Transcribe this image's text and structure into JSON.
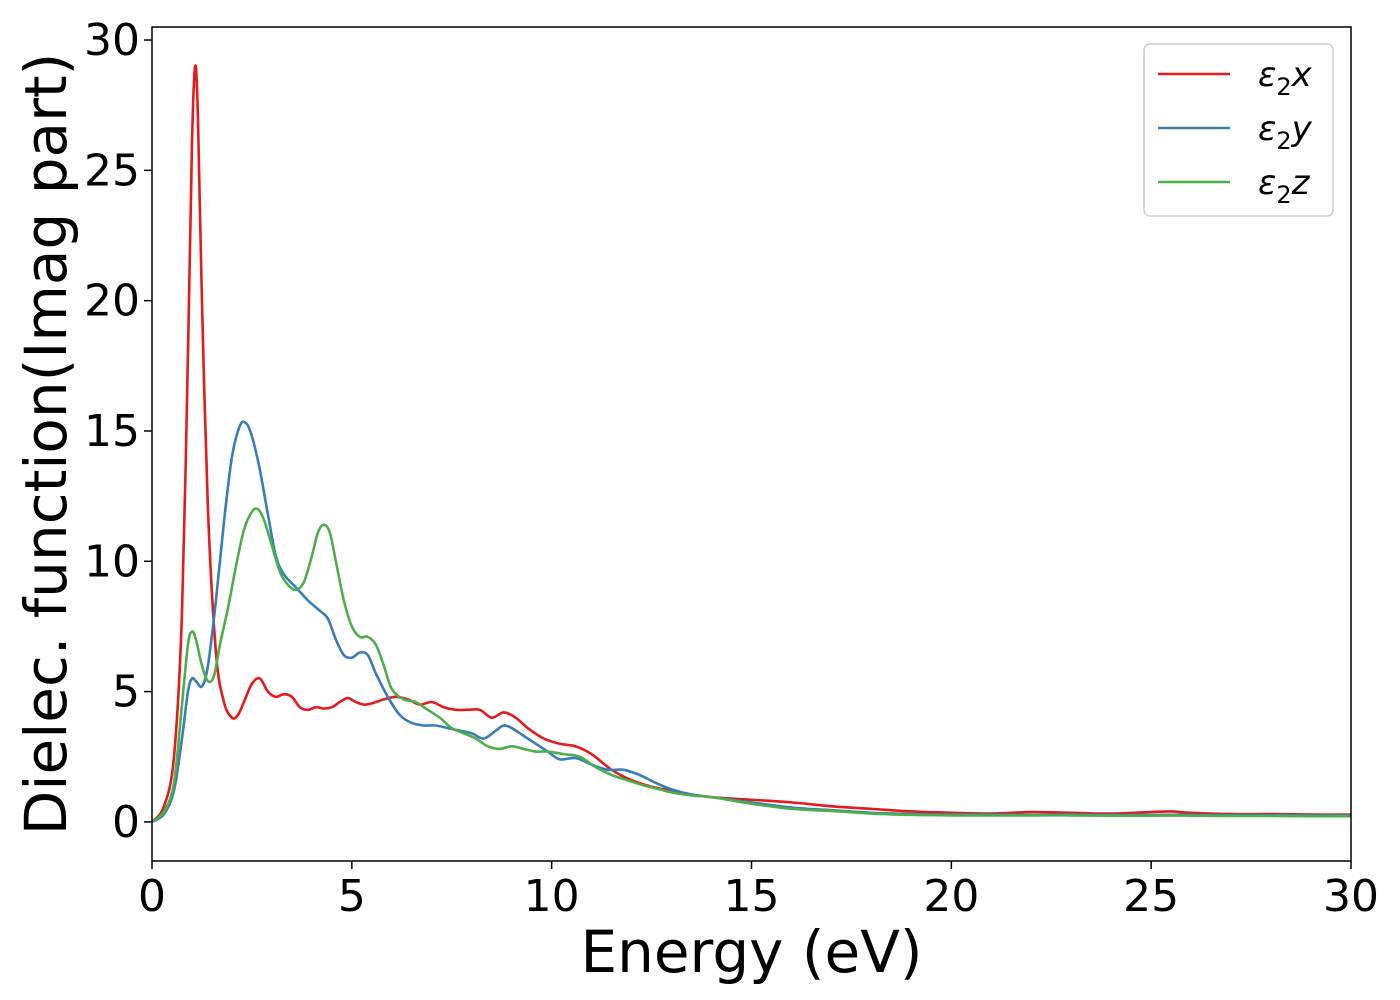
{
  "chart_data": {
    "type": "line",
    "xlabel": "Energy (eV)",
    "ylabel": "Dielec. function(Imag part)",
    "xlim": [
      0,
      30
    ],
    "ylim": [
      -1.5,
      30.5
    ],
    "xticks": [
      0,
      5,
      10,
      15,
      20,
      25,
      30
    ],
    "yticks": [
      0,
      5,
      10,
      15,
      20,
      25,
      30
    ],
    "grid": false,
    "legend_position": "top-right",
    "series": [
      {
        "name": "ε2x",
        "legend_base": "ε",
        "legend_sub": "2",
        "legend_var": "x",
        "color": "#e41a1c",
        "x": [
          0,
          0.3,
          0.55,
          0.75,
          0.9,
          1.0,
          1.08,
          1.15,
          1.25,
          1.4,
          1.6,
          1.8,
          2.0,
          2.15,
          2.3,
          2.5,
          2.7,
          2.9,
          3.1,
          3.3,
          3.5,
          3.7,
          3.9,
          4.1,
          4.3,
          4.5,
          4.7,
          4.9,
          5.1,
          5.3,
          5.5,
          5.8,
          6.1,
          6.4,
          6.7,
          7.0,
          7.3,
          7.6,
          7.9,
          8.2,
          8.5,
          8.8,
          9.1,
          9.4,
          9.8,
          10.2,
          10.6,
          11.0,
          11.5,
          12.0,
          12.5,
          13.0,
          13.5,
          14.0,
          15.0,
          16.0,
          17.0,
          18.0,
          19.0,
          20.0,
          21.0,
          22.0,
          23.0,
          24.0,
          25.0,
          25.5,
          26.0,
          27.0,
          28.0,
          29.0,
          30.0
        ],
        "values": [
          0.0,
          0.6,
          2.5,
          8.0,
          18.0,
          26.0,
          29.0,
          27.0,
          20.0,
          12.0,
          6.5,
          4.6,
          4.0,
          4.1,
          4.6,
          5.3,
          5.5,
          5.0,
          4.8,
          4.9,
          4.8,
          4.4,
          4.3,
          4.4,
          4.35,
          4.4,
          4.6,
          4.75,
          4.6,
          4.5,
          4.55,
          4.7,
          4.8,
          4.7,
          4.5,
          4.6,
          4.4,
          4.3,
          4.3,
          4.3,
          4.0,
          4.2,
          4.0,
          3.6,
          3.2,
          3.0,
          2.9,
          2.6,
          2.0,
          1.6,
          1.35,
          1.2,
          1.05,
          0.95,
          0.85,
          0.75,
          0.6,
          0.5,
          0.4,
          0.35,
          0.32,
          0.38,
          0.35,
          0.32,
          0.38,
          0.4,
          0.35,
          0.3,
          0.3,
          0.28,
          0.28
        ]
      },
      {
        "name": "ε2y",
        "legend_base": "ε",
        "legend_sub": "2",
        "legend_var": "y",
        "color": "#377eb8",
        "x": [
          0,
          0.3,
          0.55,
          0.75,
          0.9,
          1.0,
          1.1,
          1.25,
          1.4,
          1.6,
          1.8,
          2.0,
          2.2,
          2.35,
          2.5,
          2.7,
          2.9,
          3.1,
          3.3,
          3.6,
          3.9,
          4.2,
          4.4,
          4.6,
          4.8,
          5.0,
          5.2,
          5.4,
          5.6,
          5.9,
          6.2,
          6.5,
          6.8,
          7.1,
          7.4,
          7.7,
          8.0,
          8.3,
          8.6,
          8.8,
          9.0,
          9.3,
          9.6,
          9.9,
          10.2,
          10.6,
          11.0,
          11.4,
          11.8,
          12.2,
          12.6,
          13.0,
          13.5,
          14.0,
          15.0,
          16.0,
          17.0,
          18.0,
          19.0,
          20.0,
          21.0,
          22.0,
          23.0,
          24.0,
          25.0,
          26.0,
          27.0,
          28.0,
          29.0,
          30.0
        ],
        "values": [
          0.0,
          0.3,
          1.2,
          3.2,
          5.0,
          5.5,
          5.4,
          5.2,
          6.0,
          8.5,
          11.5,
          14.0,
          15.2,
          15.3,
          14.8,
          13.5,
          11.8,
          10.2,
          9.5,
          9.0,
          8.5,
          8.1,
          7.8,
          7.0,
          6.4,
          6.3,
          6.5,
          6.4,
          5.7,
          4.8,
          4.1,
          3.8,
          3.7,
          3.7,
          3.6,
          3.5,
          3.4,
          3.2,
          3.5,
          3.7,
          3.6,
          3.3,
          3.0,
          2.7,
          2.4,
          2.45,
          2.2,
          2.0,
          2.0,
          1.8,
          1.5,
          1.25,
          1.05,
          0.95,
          0.75,
          0.55,
          0.45,
          0.35,
          0.3,
          0.28,
          0.28,
          0.27,
          0.28,
          0.27,
          0.27,
          0.27,
          0.26,
          0.26,
          0.25,
          0.25
        ]
      },
      {
        "name": "ε2z",
        "legend_base": "ε",
        "legend_sub": "2",
        "legend_var": "z",
        "color": "#4daf4a",
        "x": [
          0,
          0.3,
          0.55,
          0.75,
          0.9,
          1.0,
          1.1,
          1.25,
          1.4,
          1.55,
          1.7,
          1.9,
          2.1,
          2.3,
          2.5,
          2.65,
          2.8,
          3.0,
          3.2,
          3.4,
          3.6,
          3.8,
          4.0,
          4.15,
          4.3,
          4.45,
          4.6,
          4.8,
          5.0,
          5.2,
          5.4,
          5.6,
          5.8,
          6.0,
          6.3,
          6.6,
          6.9,
          7.2,
          7.5,
          7.8,
          8.1,
          8.4,
          8.7,
          9.0,
          9.3,
          9.6,
          9.9,
          10.3,
          10.7,
          11.1,
          11.5,
          11.9,
          12.3,
          12.7,
          13.1,
          13.6,
          14.0,
          15.0,
          16.0,
          17.0,
          18.0,
          19.0,
          20.0,
          21.0,
          22.0,
          23.0,
          24.0,
          25.0,
          26.0,
          27.0,
          28.0,
          29.0,
          30.0
        ],
        "values": [
          0.0,
          0.4,
          1.5,
          4.5,
          6.8,
          7.3,
          7.0,
          6.0,
          5.4,
          5.6,
          6.8,
          8.2,
          9.8,
          11.2,
          11.9,
          12.0,
          11.6,
          10.6,
          9.6,
          9.1,
          8.9,
          9.2,
          10.2,
          11.1,
          11.4,
          11.1,
          10.0,
          8.5,
          7.5,
          7.1,
          7.1,
          6.8,
          6.0,
          5.1,
          4.7,
          4.6,
          4.3,
          4.0,
          3.6,
          3.4,
          3.2,
          2.9,
          2.8,
          2.9,
          2.8,
          2.7,
          2.7,
          2.6,
          2.5,
          2.1,
          1.8,
          1.6,
          1.4,
          1.25,
          1.1,
          1.0,
          0.95,
          0.7,
          0.5,
          0.42,
          0.32,
          0.27,
          0.25,
          0.25,
          0.25,
          0.25,
          0.24,
          0.24,
          0.24,
          0.23,
          0.23,
          0.22,
          0.22
        ]
      }
    ]
  }
}
